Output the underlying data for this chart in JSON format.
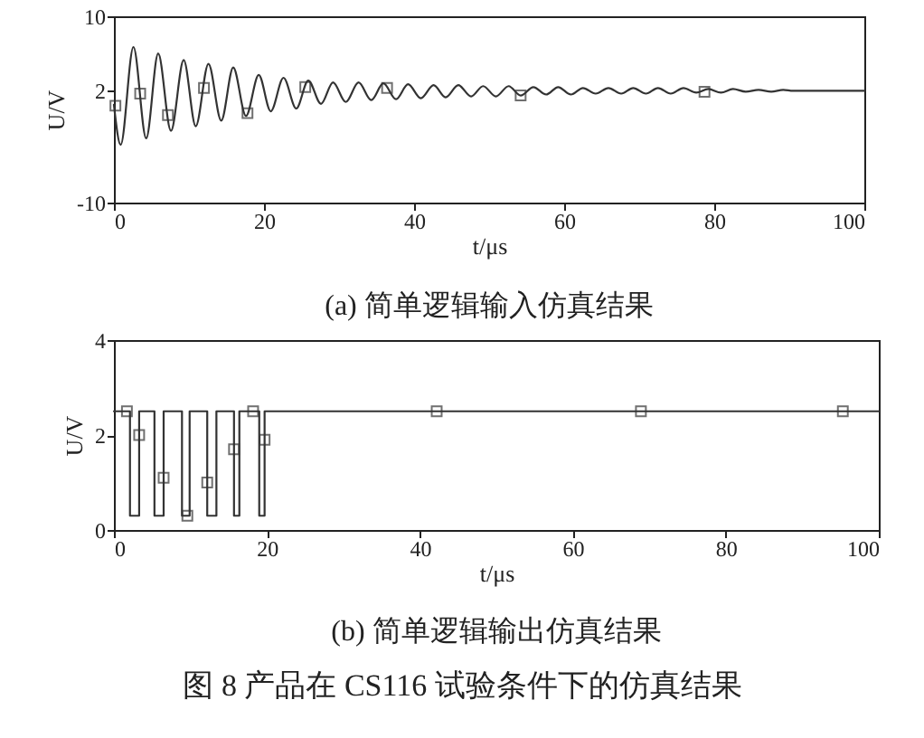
{
  "chart_data": [
    {
      "type": "line",
      "title": "(a) 简单逻辑输入仿真结果",
      "xlabel": "t/μs",
      "ylabel": "U/V",
      "xlim": [
        0,
        100
      ],
      "ylim": [
        -10,
        10
      ],
      "xticks": [
        0,
        20,
        40,
        60,
        80,
        100
      ],
      "yticks": [
        -10,
        2,
        10
      ],
      "marker": "square",
      "line_style": "solid",
      "series": [
        {
          "color": "#333333",
          "marker": "none",
          "x": [
            0,
            0.9,
            2.6,
            4.3,
            5.9,
            7.6,
            9.3,
            10.9,
            12.6,
            14.3,
            15.9,
            17.6,
            19.3,
            20.9,
            22.6,
            24.3,
            25.9,
            27.6,
            29.2,
            30.9,
            32.6,
            34.3,
            35.9,
            37.6,
            39.2,
            40.9,
            42.6,
            44.2,
            45.9,
            47.6,
            49.2,
            50.9,
            52.6,
            54.2,
            55.9,
            57.6,
            59.2,
            60.9,
            62.5,
            64.2,
            65.9,
            67.6,
            69.2,
            70.9,
            72.5,
            74.2,
            75.9,
            77.6,
            79.2,
            80.9,
            82.5,
            84.2,
            85.9,
            87.6,
            89.2,
            90.5,
            100
          ],
          "values": [
            0.5,
            -3.8,
            6.7,
            -3.1,
            6.0,
            -2.3,
            5.3,
            -1.8,
            4.9,
            -1.2,
            4.5,
            -0.7,
            3.7,
            -0.2,
            3.4,
            0.1,
            3.1,
            0.6,
            2.9,
            0.8,
            2.9,
            1.0,
            2.8,
            1.1,
            2.7,
            1.2,
            2.6,
            1.3,
            2.6,
            1.4,
            2.5,
            1.4,
            2.5,
            1.5,
            2.4,
            1.6,
            2.4,
            1.6,
            2.3,
            1.7,
            2.3,
            1.7,
            2.3,
            1.7,
            2.3,
            1.7,
            2.3,
            1.8,
            2.2,
            1.8,
            2.2,
            1.9,
            2.1,
            1.9,
            2.1,
            2.0,
            2.0
          ]
        },
        {
          "type": "scatter",
          "color": "#333333",
          "x": [
            0.2,
            3.5,
            7.2,
            12.0,
            17.8,
            25.5,
            36.4,
            54.2,
            78.7
          ],
          "values": [
            0.4,
            1.7,
            -0.6,
            2.3,
            -0.4,
            2.4,
            2.3,
            1.5,
            1.9
          ]
        }
      ]
    },
    {
      "type": "step",
      "title": "(b) 简单逻辑输出仿真结果",
      "xlabel": "t/μs",
      "ylabel": "U/V",
      "xlim": [
        0,
        100
      ],
      "ylim": [
        0,
        4
      ],
      "xticks": [
        0,
        20,
        40,
        60,
        80,
        100
      ],
      "yticks": [
        0,
        2,
        4
      ],
      "marker": "square",
      "line_style": "solid",
      "annotations": [
        "图 8 产品在 CS116 试验条件下的仿真结果"
      ],
      "series": [
        {
          "color": "#333333",
          "marker": "none",
          "x": [
            0,
            2.1,
            3.3,
            5.3,
            6.5,
            8.9,
            9.9,
            12.2,
            13.4,
            15.7,
            16.4,
            19.0,
            19.7,
            100
          ],
          "values": [
            2.5,
            0.3,
            2.5,
            0.3,
            2.5,
            0.3,
            2.5,
            0.3,
            2.5,
            0.3,
            2.5,
            0.3,
            2.5,
            2.5
          ]
        },
        {
          "type": "scatter",
          "color": "#333333",
          "x": [
            1.7,
            3.3,
            6.5,
            9.6,
            12.2,
            15.7,
            18.2,
            19.7,
            42.2,
            68.9,
            95.3
          ],
          "values": [
            2.5,
            2.0,
            1.1,
            0.3,
            1.0,
            1.7,
            2.5,
            1.9,
            2.5,
            2.5,
            2.5
          ]
        }
      ]
    }
  ]
}
